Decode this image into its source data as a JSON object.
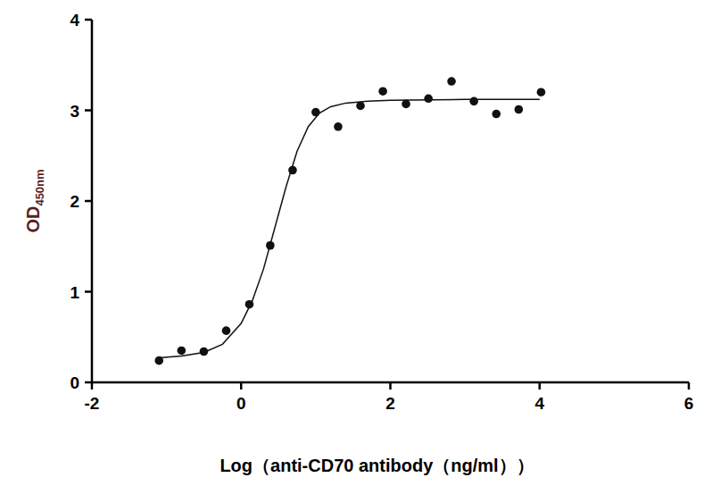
{
  "chart_data": {
    "type": "scatter",
    "x_label": "Log（anti-CD70 antibody（ng/ml））",
    "y_label": "OD",
    "y_label_subscript": "450nm",
    "xlim": [
      -2,
      6
    ],
    "xticks": [
      -2,
      0,
      2,
      4,
      6
    ],
    "ylim": [
      0,
      4
    ],
    "yticks": [
      0,
      1,
      2,
      3,
      4
    ],
    "grid": false,
    "series": [
      {
        "type": "scatter",
        "marker": "circle",
        "color": "#111111",
        "x": [
          -1.1,
          -0.8,
          -0.5,
          -0.2,
          0.11,
          0.39,
          0.69,
          1.0,
          1.3,
          1.6,
          1.9,
          2.21,
          2.51,
          2.82,
          3.12,
          3.42,
          3.72,
          4.02
        ],
        "values": [
          0.24,
          0.35,
          0.34,
          0.57,
          0.86,
          1.51,
          2.34,
          2.98,
          2.82,
          3.05,
          3.21,
          3.07,
          3.13,
          3.32,
          3.1,
          2.96,
          3.01,
          3.2
        ]
      },
      {
        "type": "line",
        "line_style": "solid",
        "color": "#111111",
        "x": [
          -1.1,
          -0.8,
          -0.5,
          -0.25,
          0.0,
          0.15,
          0.3,
          0.45,
          0.6,
          0.75,
          0.9,
          1.05,
          1.2,
          1.4,
          1.7,
          2.0,
          3.0,
          4.0
        ],
        "values": [
          0.27,
          0.29,
          0.33,
          0.42,
          0.65,
          0.9,
          1.25,
          1.7,
          2.15,
          2.55,
          2.82,
          2.97,
          3.04,
          3.08,
          3.1,
          3.11,
          3.12,
          3.12
        ]
      }
    ]
  }
}
